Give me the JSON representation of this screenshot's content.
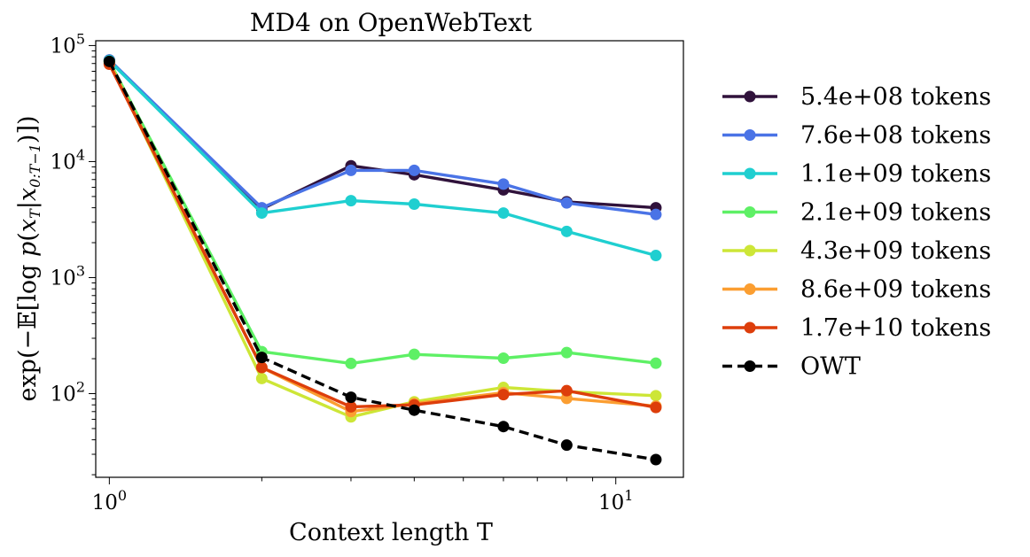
{
  "chart_data": {
    "type": "line",
    "title": "MD4 on OpenWebText",
    "xlabel": "Context length T",
    "ylabel": "exp(−𝔼[log p(x_T|x_{0:T−1})])",
    "x_scale": "log",
    "y_scale": "log",
    "xlim": [
      0.94,
      13.6
    ],
    "ylim": [
      19,
      110000
    ],
    "x_ticks": [
      {
        "value": 1,
        "base": "10",
        "exp": "0"
      },
      {
        "value": 10,
        "base": "10",
        "exp": "1"
      }
    ],
    "y_ticks": [
      {
        "value": 100,
        "base": "10",
        "exp": "2"
      },
      {
        "value": 1000,
        "base": "10",
        "exp": "3"
      },
      {
        "value": 10000,
        "base": "10",
        "exp": "4"
      },
      {
        "value": 100000,
        "base": "10",
        "exp": "5"
      }
    ],
    "x": [
      1,
      2,
      3,
      4,
      6,
      8,
      12
    ],
    "legend_placement": "outside-right",
    "grid": false,
    "series": [
      {
        "name": "5.4e+08 tokens",
        "color": "#30123b",
        "dashed": false,
        "values": [
          75000,
          3900,
          9200,
          7700,
          5700,
          4500,
          4000
        ]
      },
      {
        "name": "7.6e+08 tokens",
        "color": "#4a73e6",
        "dashed": false,
        "values": [
          75000,
          4000,
          8400,
          8400,
          6400,
          4400,
          3500
        ]
      },
      {
        "name": "1.1e+09 tokens",
        "color": "#1fcfd0",
        "dashed": false,
        "values": [
          74000,
          3600,
          4600,
          4300,
          3600,
          2500,
          1550
        ]
      },
      {
        "name": "2.1e+09 tokens",
        "color": "#5ef065",
        "dashed": false,
        "values": [
          73000,
          230,
          182,
          218,
          202,
          226,
          183
        ]
      },
      {
        "name": "4.3e+09 tokens",
        "color": "#cde637",
        "dashed": false,
        "values": [
          72000,
          135,
          63,
          85,
          113,
          104,
          96
        ]
      },
      {
        "name": "8.6e+09 tokens",
        "color": "#fb9e31",
        "dashed": false,
        "values": [
          70000,
          168,
          70,
          82,
          102,
          91,
          78
        ]
      },
      {
        "name": "1.7e+10 tokens",
        "color": "#dd3e0b",
        "dashed": false,
        "values": [
          69000,
          168,
          77,
          80,
          98,
          106,
          76
        ]
      },
      {
        "name": "OWT",
        "color": "#000000",
        "dashed": true,
        "values": [
          73000,
          205,
          93,
          72,
          52,
          36,
          27
        ]
      }
    ]
  }
}
